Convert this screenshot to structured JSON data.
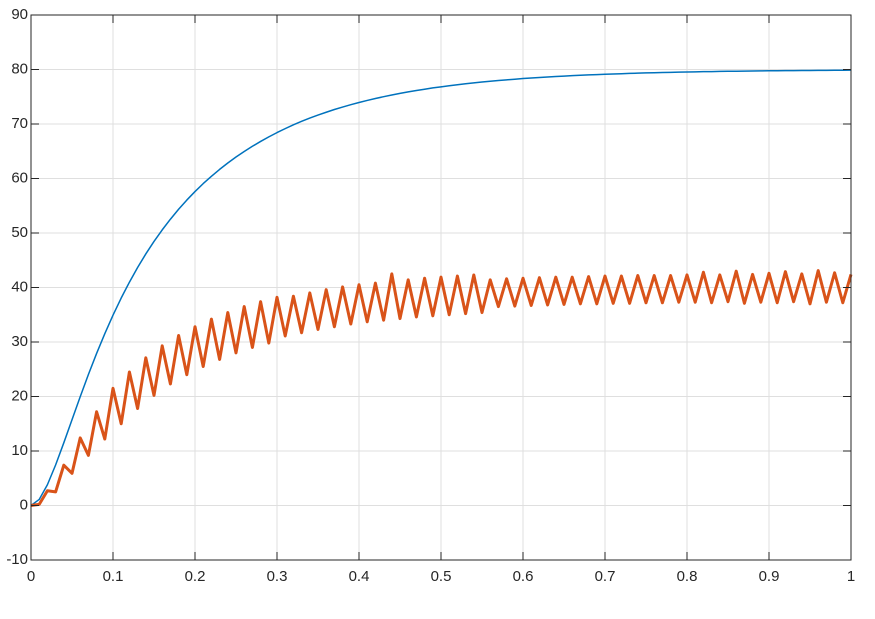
{
  "chart_data": {
    "type": "line",
    "x": [
      0,
      0.01,
      0.02,
      0.03,
      0.04,
      0.05,
      0.06,
      0.07,
      0.08,
      0.09,
      0.1,
      0.11,
      0.12,
      0.13,
      0.14,
      0.15,
      0.16,
      0.17,
      0.18,
      0.19,
      0.2,
      0.21,
      0.22,
      0.23,
      0.24,
      0.25,
      0.26,
      0.27,
      0.28,
      0.29,
      0.3,
      0.31,
      0.32,
      0.33,
      0.34,
      0.35,
      0.36,
      0.37,
      0.38,
      0.39,
      0.4,
      0.41,
      0.42,
      0.43,
      0.44,
      0.45,
      0.46,
      0.47,
      0.48,
      0.49,
      0.5,
      0.51,
      0.52,
      0.53,
      0.54,
      0.55,
      0.56,
      0.57,
      0.58,
      0.59,
      0.6,
      0.61,
      0.62,
      0.63,
      0.64,
      0.65,
      0.66,
      0.67,
      0.68,
      0.69,
      0.7,
      0.71,
      0.72,
      0.73,
      0.74,
      0.75,
      0.76,
      0.77,
      0.78,
      0.79,
      0.8,
      0.81,
      0.82,
      0.83,
      0.84,
      0.85,
      0.86,
      0.87,
      0.88,
      0.89,
      0.9,
      0.91,
      0.92,
      0.93,
      0.94,
      0.95,
      0.96,
      0.97,
      0.98,
      0.99,
      1
    ],
    "series": [
      {
        "color": "#0072bd",
        "width": 1.5,
        "values": [
          0,
          1.11,
          3.81,
          7.43,
          11.5,
          15.74,
          19.96,
          24.03,
          27.9,
          31.53,
          34.92,
          38.07,
          40.97,
          43.67,
          46.16,
          48.45,
          50.57,
          52.53,
          54.35,
          56.04,
          57.6,
          59.06,
          60.41,
          61.67,
          62.84,
          63.94,
          64.96,
          65.91,
          66.8,
          67.64,
          68.42,
          69.15,
          69.86,
          70.49,
          71.08,
          71.64,
          72.16,
          72.66,
          73.11,
          73.54,
          73.94,
          74.32,
          74.68,
          75.01,
          75.32,
          75.62,
          75.89,
          76.14,
          76.38,
          76.62,
          76.82,
          77.02,
          77.21,
          77.38,
          77.54,
          77.7,
          77.84,
          77.98,
          78.1,
          78.22,
          78.34,
          78.44,
          78.54,
          78.62,
          78.71,
          78.79,
          78.87,
          78.94,
          79.01,
          79.07,
          79.13,
          79.18,
          79.23,
          79.28,
          79.33,
          79.37,
          79.41,
          79.45,
          79.48,
          79.51,
          79.54,
          79.57,
          79.6,
          79.62,
          79.65,
          79.67,
          79.69,
          79.71,
          79.73,
          79.74,
          79.76,
          79.77,
          79.79,
          79.8,
          79.81,
          79.82,
          79.84,
          79.85,
          79.86,
          79.87,
          79.88
        ]
      },
      {
        "color": "#d95319",
        "width": 3,
        "values": [
          0,
          0.2,
          2.7,
          2.5,
          7.4,
          5.9,
          12.4,
          9.2,
          17.2,
          12.2,
          21.5,
          15,
          24.5,
          17.8,
          27.1,
          20.2,
          29.3,
          22.3,
          31.2,
          24,
          32.8,
          25.5,
          34.2,
          26.8,
          35.4,
          28,
          36.5,
          29,
          37.4,
          29.8,
          38.2,
          31.1,
          38.4,
          31.7,
          39,
          32.3,
          39.6,
          32.8,
          40.1,
          33.3,
          40.5,
          33.7,
          40.8,
          34,
          42.5,
          34.3,
          41.4,
          34.6,
          41.7,
          34.8,
          41.9,
          35,
          42.1,
          35.2,
          42.3,
          35.4,
          41.4,
          36.5,
          41.6,
          36.6,
          41.7,
          36.7,
          41.8,
          36.8,
          41.9,
          36.9,
          41.9,
          37,
          42,
          37,
          42.1,
          37.1,
          42.1,
          37.1,
          42.2,
          37.2,
          42.2,
          37.2,
          42.2,
          37.3,
          42.3,
          37.3,
          42.8,
          37.2,
          42.3,
          37.4,
          43,
          37.1,
          42.4,
          37.3,
          42.6,
          37.2,
          42.9,
          37.4,
          42.5,
          37,
          43.1,
          37.3,
          42.7,
          37.2,
          42.4
        ]
      }
    ],
    "xlim": [
      0,
      1
    ],
    "xticks": [
      0,
      0.1,
      0.2,
      0.3,
      0.4,
      0.5,
      0.6,
      0.7,
      0.8,
      0.9,
      1
    ],
    "ylim": [
      -10,
      90
    ],
    "yticks": [
      -10,
      0,
      10,
      20,
      30,
      40,
      50,
      60,
      70,
      80,
      90
    ],
    "grid": true
  }
}
